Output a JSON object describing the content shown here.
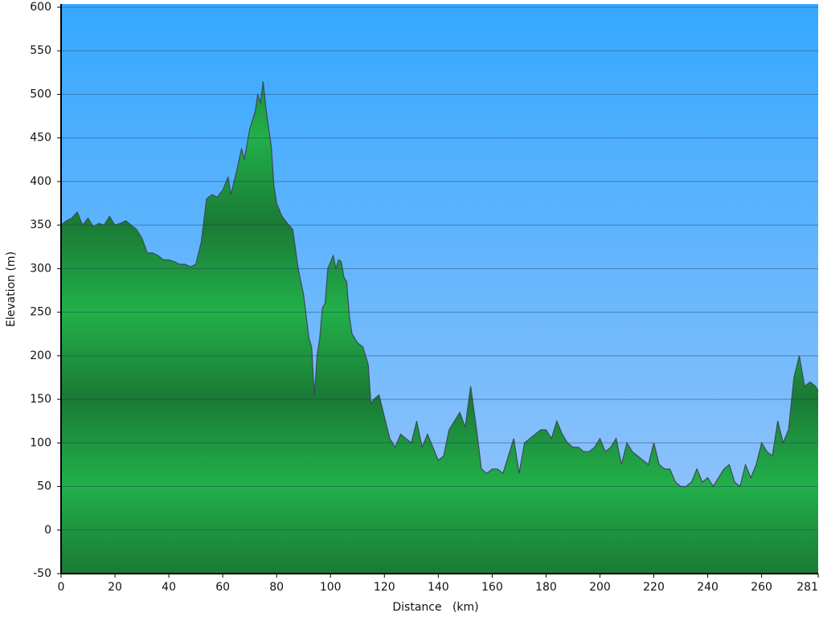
{
  "chart_data": {
    "type": "area",
    "x_label": "Distance   (km)",
    "y_label": "Elevation (m)",
    "x": [
      0,
      2,
      4,
      6,
      8,
      10,
      12,
      14,
      16,
      18,
      20,
      22,
      24,
      26,
      28,
      30,
      32,
      34,
      36,
      38,
      40,
      42,
      44,
      46,
      48,
      50,
      52,
      54,
      56,
      58,
      60,
      62,
      63,
      65,
      67,
      68,
      70,
      72,
      73,
      74,
      75,
      76,
      77,
      78,
      79,
      80,
      82,
      84,
      86,
      88,
      90,
      92,
      93,
      94,
      95,
      96,
      97,
      98,
      99,
      101,
      102,
      103,
      104,
      105,
      106,
      107,
      108,
      110,
      112,
      114,
      115,
      116,
      118,
      120,
      122,
      124,
      126,
      128,
      130,
      132,
      134,
      136,
      138,
      140,
      142,
      144,
      146,
      148,
      150,
      152,
      154,
      156,
      158,
      160,
      162,
      164,
      166,
      168,
      170,
      172,
      174,
      176,
      178,
      180,
      182,
      184,
      186,
      188,
      190,
      192,
      194,
      196,
      198,
      200,
      202,
      204,
      206,
      208,
      210,
      212,
      214,
      216,
      218,
      220,
      222,
      224,
      226,
      228,
      230,
      232,
      234,
      236,
      238,
      240,
      242,
      244,
      246,
      248,
      250,
      252,
      254,
      256,
      258,
      260,
      262,
      264,
      266,
      268,
      270,
      272,
      274,
      276,
      278,
      280,
      281
    ],
    "values": [
      350,
      355,
      358,
      365,
      350,
      358,
      348,
      352,
      350,
      360,
      350,
      352,
      355,
      350,
      345,
      335,
      318,
      318,
      315,
      310,
      310,
      308,
      305,
      305,
      302,
      305,
      330,
      380,
      385,
      382,
      390,
      405,
      385,
      410,
      438,
      425,
      460,
      480,
      500,
      490,
      515,
      485,
      462,
      440,
      395,
      375,
      360,
      352,
      345,
      300,
      270,
      220,
      210,
      155,
      200,
      220,
      255,
      260,
      300,
      315,
      300,
      310,
      308,
      290,
      285,
      245,
      225,
      215,
      210,
      190,
      145,
      150,
      155,
      130,
      105,
      95,
      110,
      105,
      100,
      125,
      95,
      110,
      95,
      80,
      85,
      115,
      125,
      135,
      118,
      165,
      120,
      70,
      65,
      70,
      70,
      65,
      85,
      105,
      65,
      100,
      105,
      110,
      115,
      115,
      105,
      125,
      110,
      100,
      95,
      95,
      90,
      90,
      95,
      105,
      90,
      95,
      105,
      75,
      100,
      90,
      85,
      80,
      75,
      100,
      75,
      70,
      70,
      55,
      50,
      50,
      55,
      70,
      55,
      60,
      50,
      60,
      70,
      75,
      55,
      50,
      75,
      60,
      75,
      100,
      90,
      85,
      125,
      100,
      115,
      175,
      200,
      165,
      170,
      165,
      160
    ],
    "xlim": [
      0,
      281
    ],
    "ylim": [
      -50,
      600
    ],
    "xticks": [
      0,
      20,
      40,
      60,
      80,
      100,
      120,
      140,
      160,
      180,
      200,
      220,
      240,
      260,
      281
    ],
    "yticks": [
      -50,
      0,
      50,
      100,
      150,
      200,
      250,
      300,
      350,
      400,
      450,
      500,
      550,
      600
    ],
    "grid": true,
    "color": "#22a845",
    "sky_color": "#3aa8ff"
  }
}
